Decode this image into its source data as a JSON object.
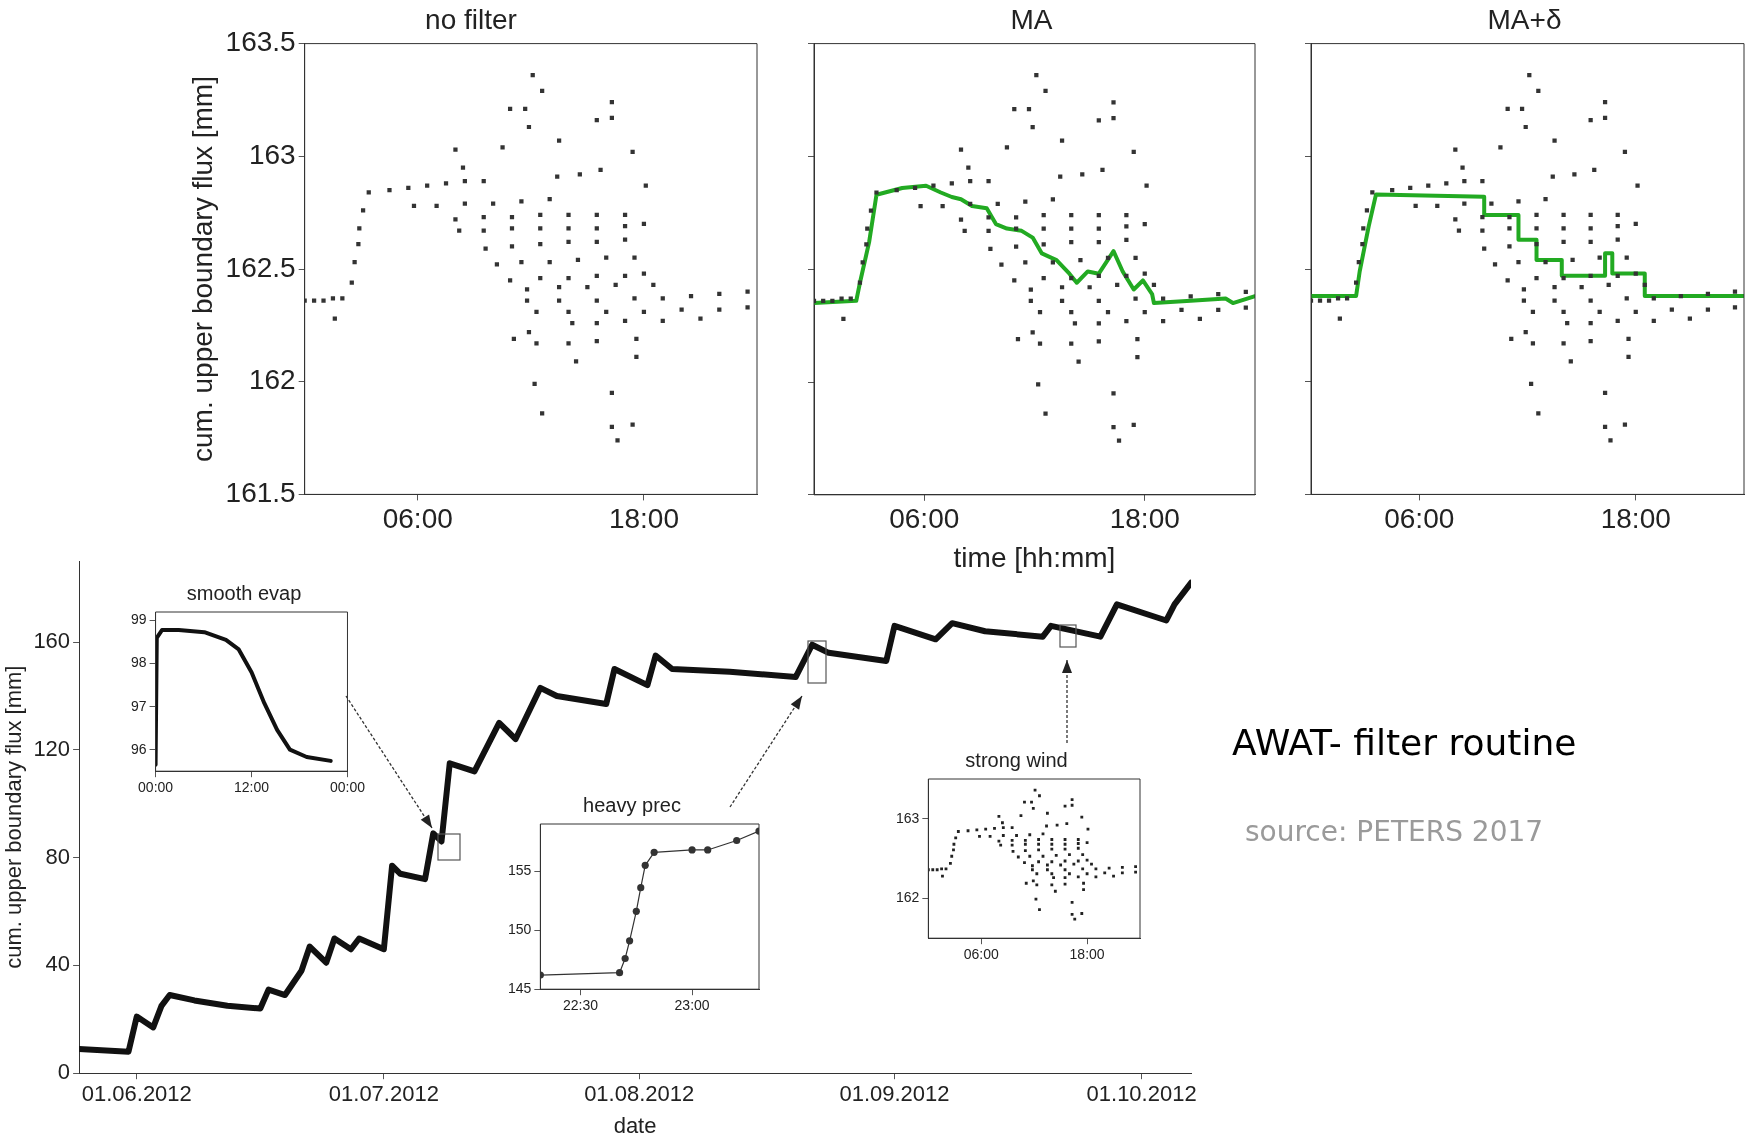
{
  "chart_data": [
    {
      "type": "scatter",
      "title": "no filter",
      "ylabel": "cum. upper boundary flux [mm]",
      "xlim": [
        0,
        24
      ],
      "xticks": [
        {
          "value": 6,
          "label": "06:00"
        },
        {
          "value": 18,
          "label": "18:00"
        }
      ],
      "ylim": [
        161.5,
        163.5
      ],
      "yticks": [
        161.5,
        162,
        162.5,
        163,
        163.5
      ],
      "series": [
        {
          "type": "scatter",
          "color": "#333333",
          "marker": "square",
          "x": [
            0,
            0.5,
            1,
            1.5,
            2,
            1.6,
            2.5,
            2.65,
            2.85,
            2.9,
            3.1,
            3.4,
            4.5,
            5.5,
            6.5,
            7.5,
            8.5,
            9.5,
            5.8,
            7,
            8.5,
            10,
            11.5,
            13,
            8,
            9.5,
            11,
            12.5,
            14,
            15.5,
            17,
            8.2,
            9.5,
            11,
            12.5,
            14,
            15.5,
            17,
            18,
            9.6,
            11,
            12.5,
            14,
            15.5,
            17,
            10.2,
            11.5,
            13,
            14.5,
            16,
            17.5,
            10.9,
            12.5,
            14,
            15.5,
            17,
            18,
            11.8,
            13.5,
            15,
            16.5,
            18.5,
            11.8,
            13.5,
            15.5,
            17.5,
            19,
            20.5,
            22,
            23.5,
            12.3,
            14,
            16,
            18,
            20,
            22,
            23.5,
            14.2,
            15.5,
            17,
            19,
            21,
            12.1,
            12.6,
            10.9,
            11.7,
            11.9,
            16.3,
            16.3,
            15.5,
            13.5,
            8,
            8.4,
            10.5,
            17.4,
            18.1,
            15.7,
            14.6,
            13.4,
            11.1,
            12.3,
            14,
            15.5,
            11.9,
            14.4,
            17.6,
            12.2,
            12.6,
            16.3,
            16.3,
            16.6,
            17.4,
            17.6
          ],
          "values": [
            162.36,
            162.36,
            162.36,
            162.37,
            162.37,
            162.28,
            162.44,
            162.53,
            162.61,
            162.68,
            162.76,
            162.84,
            162.85,
            162.86,
            162.87,
            162.88,
            162.89,
            162.89,
            162.78,
            162.78,
            162.79,
            162.79,
            162.8,
            162.81,
            162.72,
            162.73,
            162.73,
            162.74,
            162.74,
            162.74,
            162.74,
            162.67,
            162.67,
            162.68,
            162.68,
            162.68,
            162.68,
            162.69,
            162.7,
            162.59,
            162.6,
            162.61,
            162.62,
            162.62,
            162.63,
            162.52,
            162.53,
            162.53,
            162.54,
            162.55,
            162.55,
            162.45,
            162.46,
            162.46,
            162.47,
            162.47,
            162.48,
            162.41,
            162.42,
            162.42,
            162.43,
            162.43,
            162.36,
            162.36,
            162.36,
            162.37,
            162.37,
            162.38,
            162.39,
            162.4,
            162.31,
            162.31,
            162.31,
            162.31,
            162.32,
            162.32,
            162.33,
            162.26,
            162.26,
            162.27,
            162.27,
            162.28,
            163.36,
            163.29,
            163.21,
            163.21,
            163.13,
            163.24,
            163.17,
            163.16,
            163.07,
            163.03,
            162.95,
            163.04,
            163.02,
            162.87,
            162.94,
            162.92,
            162.91,
            162.19,
            162.17,
            162.17,
            162.18,
            162.22,
            162.09,
            162.11,
            161.99,
            161.86,
            161.95,
            161.8,
            161.74,
            161.81,
            162.19
          ]
        }
      ]
    },
    {
      "type": "scatter",
      "title": "MA",
      "xlabel": "time [hh:mm]",
      "tick_labels": "x",
      "xlim": [
        0,
        24
      ],
      "xticks": [
        {
          "value": 6,
          "label": "06:00"
        },
        {
          "value": 18,
          "label": "18:00"
        }
      ],
      "ylim": [
        161.5,
        163.5
      ],
      "yticks": [
        161.5,
        162,
        162.5,
        163,
        163.5
      ],
      "series": [
        {
          "type": "scatter",
          "color": "#333333",
          "marker": "square",
          "x": [
            0,
            0.5,
            1,
            1.5,
            2,
            1.6,
            2.5,
            2.65,
            2.85,
            2.9,
            3.1,
            3.4,
            4.5,
            5.5,
            6.5,
            7.5,
            8.5,
            9.5,
            5.8,
            7,
            8.5,
            10,
            11.5,
            13,
            8,
            9.5,
            11,
            12.5,
            14,
            15.5,
            17,
            8.2,
            9.5,
            11,
            12.5,
            14,
            15.5,
            17,
            18,
            9.6,
            11,
            12.5,
            14,
            15.5,
            17,
            10.2,
            11.5,
            13,
            14.5,
            16,
            17.5,
            10.9,
            12.5,
            14,
            15.5,
            17,
            18,
            11.8,
            13.5,
            15,
            16.5,
            18.5,
            11.8,
            13.5,
            15.5,
            17.5,
            19,
            20.5,
            22,
            23.5,
            12.3,
            14,
            16,
            18,
            20,
            22,
            23.5,
            14.2,
            15.5,
            17,
            19,
            21,
            12.1,
            12.6,
            10.9,
            11.7,
            11.9,
            16.3,
            16.3,
            15.5,
            13.5,
            8,
            8.4,
            10.5,
            17.4,
            18.1,
            15.7,
            14.6,
            13.4,
            11.1,
            12.3,
            14,
            15.5,
            11.9,
            14.4,
            17.6,
            12.2,
            12.6,
            16.3,
            16.3,
            16.6,
            17.4,
            17.6
          ],
          "values": [
            162.36,
            162.36,
            162.36,
            162.37,
            162.37,
            162.28,
            162.44,
            162.53,
            162.61,
            162.68,
            162.76,
            162.84,
            162.85,
            162.86,
            162.87,
            162.88,
            162.89,
            162.89,
            162.78,
            162.78,
            162.79,
            162.79,
            162.8,
            162.81,
            162.72,
            162.73,
            162.73,
            162.74,
            162.74,
            162.74,
            162.74,
            162.67,
            162.67,
            162.68,
            162.68,
            162.68,
            162.68,
            162.69,
            162.7,
            162.59,
            162.6,
            162.61,
            162.62,
            162.62,
            162.63,
            162.52,
            162.53,
            162.53,
            162.54,
            162.55,
            162.55,
            162.45,
            162.46,
            162.46,
            162.47,
            162.47,
            162.48,
            162.41,
            162.42,
            162.42,
            162.43,
            162.43,
            162.36,
            162.36,
            162.36,
            162.37,
            162.37,
            162.38,
            162.39,
            162.4,
            162.31,
            162.31,
            162.31,
            162.31,
            162.32,
            162.32,
            162.33,
            162.26,
            162.26,
            162.27,
            162.27,
            162.28,
            163.36,
            163.29,
            163.21,
            163.21,
            163.13,
            163.24,
            163.17,
            163.16,
            163.07,
            163.03,
            162.95,
            163.04,
            163.02,
            162.87,
            162.94,
            162.92,
            162.91,
            162.19,
            162.17,
            162.17,
            162.18,
            162.22,
            162.09,
            162.11,
            161.99,
            161.86,
            161.95,
            161.8,
            161.74,
            161.81,
            162.19
          ]
        },
        {
          "type": "line",
          "color": "#22aa22",
          "x": [
            0,
            2.3,
            2.5,
            3,
            3.4,
            4.8,
            6.1,
            6.9,
            7.5,
            8,
            8.6,
            9.4,
            9.9,
            10.5,
            11.3,
            11.9,
            12.4,
            13.2,
            13.9,
            14.3,
            14.9,
            15.5,
            16.3,
            16.8,
            17.4,
            17.9,
            18.4,
            18.5,
            20.5,
            22.4,
            22.8,
            24
          ],
          "values": [
            162.35,
            162.36,
            162.44,
            162.62,
            162.83,
            162.86,
            162.87,
            162.84,
            162.82,
            162.81,
            162.78,
            162.77,
            162.7,
            162.68,
            162.67,
            162.64,
            162.57,
            162.54,
            162.48,
            162.44,
            162.49,
            162.48,
            162.58,
            162.49,
            162.41,
            162.45,
            162.39,
            162.35,
            162.36,
            162.37,
            162.35,
            162.38
          ]
        }
      ]
    },
    {
      "type": "scatter",
      "title": "MA+δ",
      "tick_labels": "x",
      "xlim": [
        0,
        24
      ],
      "xticks": [
        {
          "value": 6,
          "label": "06:00"
        },
        {
          "value": 18,
          "label": "18:00"
        }
      ],
      "ylim": [
        161.5,
        163.5
      ],
      "yticks": [
        161.5,
        162,
        162.5,
        163,
        163.5
      ],
      "series": [
        {
          "type": "scatter",
          "color": "#333333",
          "marker": "square",
          "x": [
            0,
            0.5,
            1,
            1.5,
            2,
            1.6,
            2.5,
            2.65,
            2.85,
            2.9,
            3.1,
            3.4,
            4.5,
            5.5,
            6.5,
            7.5,
            8.5,
            9.5,
            5.8,
            7,
            8.5,
            10,
            11.5,
            13,
            8,
            9.5,
            11,
            12.5,
            14,
            15.5,
            17,
            8.2,
            9.5,
            11,
            12.5,
            14,
            15.5,
            17,
            18,
            9.6,
            11,
            12.5,
            14,
            15.5,
            17,
            10.2,
            11.5,
            13,
            14.5,
            16,
            17.5,
            10.9,
            12.5,
            14,
            15.5,
            17,
            18,
            11.8,
            13.5,
            15,
            16.5,
            18.5,
            11.8,
            13.5,
            15.5,
            17.5,
            19,
            20.5,
            22,
            23.5,
            12.3,
            14,
            16,
            18,
            20,
            22,
            23.5,
            14.2,
            15.5,
            17,
            19,
            21,
            12.1,
            12.6,
            10.9,
            11.7,
            11.9,
            16.3,
            16.3,
            15.5,
            13.5,
            8,
            8.4,
            10.5,
            17.4,
            18.1,
            15.7,
            14.6,
            13.4,
            11.1,
            12.3,
            14,
            15.5,
            11.9,
            14.4,
            17.6,
            12.2,
            12.6,
            16.3,
            16.3,
            16.6,
            17.4,
            17.6
          ],
          "values": [
            162.36,
            162.36,
            162.36,
            162.37,
            162.37,
            162.28,
            162.44,
            162.53,
            162.61,
            162.68,
            162.76,
            162.84,
            162.85,
            162.86,
            162.87,
            162.88,
            162.89,
            162.89,
            162.78,
            162.78,
            162.79,
            162.79,
            162.8,
            162.81,
            162.72,
            162.73,
            162.73,
            162.74,
            162.74,
            162.74,
            162.74,
            162.67,
            162.67,
            162.68,
            162.68,
            162.68,
            162.68,
            162.69,
            162.7,
            162.59,
            162.6,
            162.61,
            162.62,
            162.62,
            162.63,
            162.52,
            162.53,
            162.53,
            162.54,
            162.55,
            162.55,
            162.45,
            162.46,
            162.46,
            162.47,
            162.47,
            162.48,
            162.41,
            162.42,
            162.42,
            162.43,
            162.43,
            162.36,
            162.36,
            162.36,
            162.37,
            162.37,
            162.38,
            162.39,
            162.4,
            162.31,
            162.31,
            162.31,
            162.31,
            162.32,
            162.32,
            162.33,
            162.26,
            162.26,
            162.27,
            162.27,
            162.28,
            163.36,
            163.29,
            163.21,
            163.21,
            163.13,
            163.24,
            163.17,
            163.16,
            163.07,
            163.03,
            162.95,
            163.04,
            163.02,
            162.87,
            162.94,
            162.92,
            162.91,
            162.19,
            162.17,
            162.17,
            162.18,
            162.22,
            162.09,
            162.11,
            161.99,
            161.86,
            161.95,
            161.8,
            161.74,
            161.81,
            162.19
          ]
        },
        {
          "type": "line",
          "color": "#22aa22",
          "x": [
            0,
            2.5,
            2.7,
            3.2,
            3.6,
            9.6,
            9.6,
            11.5,
            11.5,
            12.5,
            12.5,
            13.9,
            13.9,
            16.3,
            16.3,
            16.7,
            16.7,
            18.5,
            18.5,
            24
          ],
          "values": [
            162.38,
            162.38,
            162.49,
            162.69,
            162.83,
            162.82,
            162.74,
            162.74,
            162.63,
            162.63,
            162.54,
            162.54,
            162.47,
            162.47,
            162.57,
            162.57,
            162.48,
            162.48,
            162.38,
            162.38
          ]
        }
      ]
    },
    {
      "type": "line",
      "xlabel": "date",
      "ylabel": "cum. upper boundary flux [mm]",
      "xlim": [
        "2012-05-25",
        "2012-10-07"
      ],
      "xticks": [
        {
          "value": "2012-06-01",
          "label": "01.06.2012"
        },
        {
          "value": "2012-07-01",
          "label": "01.07.2012"
        },
        {
          "value": "2012-08-01",
          "label": "01.08.2012"
        },
        {
          "value": "2012-09-01",
          "label": "01.09.2012"
        },
        {
          "value": "2012-10-01",
          "label": "01.10.2012"
        }
      ],
      "ylim": [
        0,
        190
      ],
      "yticks": [
        0,
        40,
        80,
        120,
        160
      ],
      "annotations": [
        "AWAT- filter routine",
        "source: PETERS 2017"
      ],
      "series": [
        {
          "color": "#111111",
          "x": [
            "2012-05-25",
            "2012-05-31",
            "2012-06-01",
            "2012-06-03",
            "2012-06-04",
            "2012-06-05",
            "2012-06-08",
            "2012-06-12",
            "2012-06-16",
            "2012-06-17",
            "2012-06-19",
            "2012-06-21",
            "2012-06-22",
            "2012-06-24",
            "2012-06-25",
            "2012-06-27",
            "2012-06-28",
            "2012-07-01",
            "2012-07-02",
            "2012-07-03",
            "2012-07-06",
            "2012-07-07",
            "2012-07-08",
            "2012-07-09",
            "2012-07-12",
            "2012-07-15",
            "2012-07-17",
            "2012-07-20",
            "2012-07-22",
            "2012-07-28",
            "2012-07-29",
            "2012-08-02",
            "2012-08-03",
            "2012-08-05",
            "2012-08-12",
            "2012-08-20",
            "2012-08-22",
            "2012-08-24",
            "2012-08-31",
            "2012-09-01",
            "2012-09-06",
            "2012-09-08",
            "2012-09-12",
            "2012-09-19",
            "2012-09-20",
            "2012-09-26",
            "2012-09-28",
            "2012-10-04",
            "2012-10-05",
            "2012-10-07"
          ],
          "values": [
            9,
            8,
            21,
            17,
            25,
            29,
            27,
            25,
            24,
            31,
            29,
            38,
            47,
            41,
            50,
            46,
            50,
            46,
            77,
            74,
            72,
            89,
            86,
            115,
            112,
            130,
            124,
            143,
            140,
            137,
            150,
            144,
            155,
            150,
            149,
            147,
            159,
            156,
            153,
            166,
            161,
            167,
            164,
            162,
            166,
            162,
            174,
            168,
            174,
            182
          ]
        }
      ]
    },
    {
      "type": "line",
      "title": "smooth evap",
      "xlim": [
        0,
        24
      ],
      "xticks": [
        {
          "value": 0,
          "label": "00:00"
        },
        {
          "value": 12,
          "label": "12:00"
        },
        {
          "value": 24,
          "label": "00:00"
        }
      ],
      "ylim": [
        95.5,
        99.2
      ],
      "yticks": [
        96,
        97,
        98,
        99
      ],
      "series": [
        {
          "color": "#111111",
          "x": [
            0,
            0.15,
            0.8,
            2.9,
            6.1,
            8.8,
            10.4,
            12,
            13.6,
            15.2,
            16.8,
            18.9,
            21.9
          ],
          "values": [
            95.65,
            98.6,
            98.78,
            98.78,
            98.73,
            98.55,
            98.33,
            97.8,
            97.08,
            96.46,
            96,
            95.83,
            95.74
          ]
        }
      ]
    },
    {
      "type": "line",
      "title": "heavy prec",
      "marker": "circle",
      "xlim": [
        22.32,
        23.3
      ],
      "xticks": [
        {
          "value": 22.5,
          "label": "22:30"
        },
        {
          "value": 23,
          "label": "23:00"
        }
      ],
      "ylim": [
        145,
        159
      ],
      "yticks": [
        145,
        150,
        155
      ],
      "series": [
        {
          "color": "#333333",
          "x": [
            22.32,
            22.675,
            22.7,
            22.72,
            22.75,
            22.77,
            22.79,
            22.83,
            23,
            23.07,
            23.2,
            23.3
          ],
          "values": [
            146.2,
            146.4,
            147.6,
            149.1,
            151.6,
            153.6,
            155.5,
            156.6,
            156.8,
            156.8,
            157.6,
            158.4
          ]
        }
      ]
    },
    {
      "type": "scatter",
      "title": "strong wind",
      "xlim": [
        0,
        24
      ],
      "xticks": [
        {
          "value": 6,
          "label": "06:00"
        },
        {
          "value": 18,
          "label": "18:00"
        }
      ],
      "ylim": [
        161.5,
        163.5
      ],
      "yticks": [
        162,
        163
      ],
      "series": [
        {
          "color": "#222222",
          "marker": "square",
          "x": [
            0,
            0.5,
            1,
            1.5,
            2,
            1.6,
            2.5,
            2.65,
            2.85,
            2.9,
            3.1,
            3.4,
            4.5,
            5.5,
            6.5,
            7.5,
            8.5,
            9.5,
            5.8,
            7,
            8.5,
            10,
            11.5,
            13,
            8,
            9.5,
            11,
            12.5,
            14,
            15.5,
            17,
            8.2,
            9.5,
            11,
            12.5,
            14,
            15.5,
            17,
            18,
            9.6,
            11,
            12.5,
            14,
            15.5,
            17,
            10.2,
            11.5,
            13,
            14.5,
            16,
            17.5,
            10.9,
            12.5,
            14,
            15.5,
            17,
            18,
            11.8,
            13.5,
            15,
            16.5,
            18.5,
            11.8,
            13.5,
            15.5,
            17.5,
            19,
            20.5,
            22,
            23.5,
            12.3,
            14,
            16,
            18,
            20,
            22,
            23.5,
            14.2,
            15.5,
            17,
            19,
            21,
            12.1,
            12.6,
            10.9,
            11.7,
            11.9,
            16.3,
            16.3,
            15.5,
            13.5,
            8,
            8.4,
            10.5,
            17.4,
            18.1,
            15.7,
            14.6,
            13.4,
            11.1,
            12.3,
            14,
            15.5,
            11.9,
            14.4,
            17.6,
            12.2,
            12.6,
            16.3,
            16.3,
            16.6,
            17.4,
            17.6
          ],
          "values": [
            162.36,
            162.36,
            162.36,
            162.37,
            162.37,
            162.28,
            162.44,
            162.53,
            162.61,
            162.68,
            162.76,
            162.84,
            162.85,
            162.86,
            162.87,
            162.88,
            162.89,
            162.89,
            162.78,
            162.78,
            162.79,
            162.79,
            162.8,
            162.81,
            162.72,
            162.73,
            162.73,
            162.74,
            162.74,
            162.74,
            162.74,
            162.67,
            162.67,
            162.68,
            162.68,
            162.68,
            162.68,
            162.69,
            162.7,
            162.59,
            162.6,
            162.61,
            162.62,
            162.62,
            162.63,
            162.52,
            162.53,
            162.53,
            162.54,
            162.55,
            162.55,
            162.45,
            162.46,
            162.46,
            162.47,
            162.47,
            162.48,
            162.41,
            162.42,
            162.42,
            162.43,
            162.43,
            162.36,
            162.36,
            162.36,
            162.37,
            162.37,
            162.38,
            162.39,
            162.4,
            162.31,
            162.31,
            162.31,
            162.31,
            162.32,
            162.32,
            162.33,
            162.26,
            162.26,
            162.27,
            162.27,
            162.28,
            163.36,
            163.29,
            163.21,
            163.21,
            163.13,
            163.24,
            163.17,
            163.16,
            163.07,
            163.03,
            162.95,
            163.04,
            163.02,
            162.87,
            162.94,
            162.92,
            162.91,
            162.19,
            162.17,
            162.17,
            162.18,
            162.22,
            162.09,
            162.11,
            161.99,
            161.86,
            161.95,
            161.8,
            161.74,
            161.81,
            162.19
          ]
        }
      ]
    }
  ]
}
